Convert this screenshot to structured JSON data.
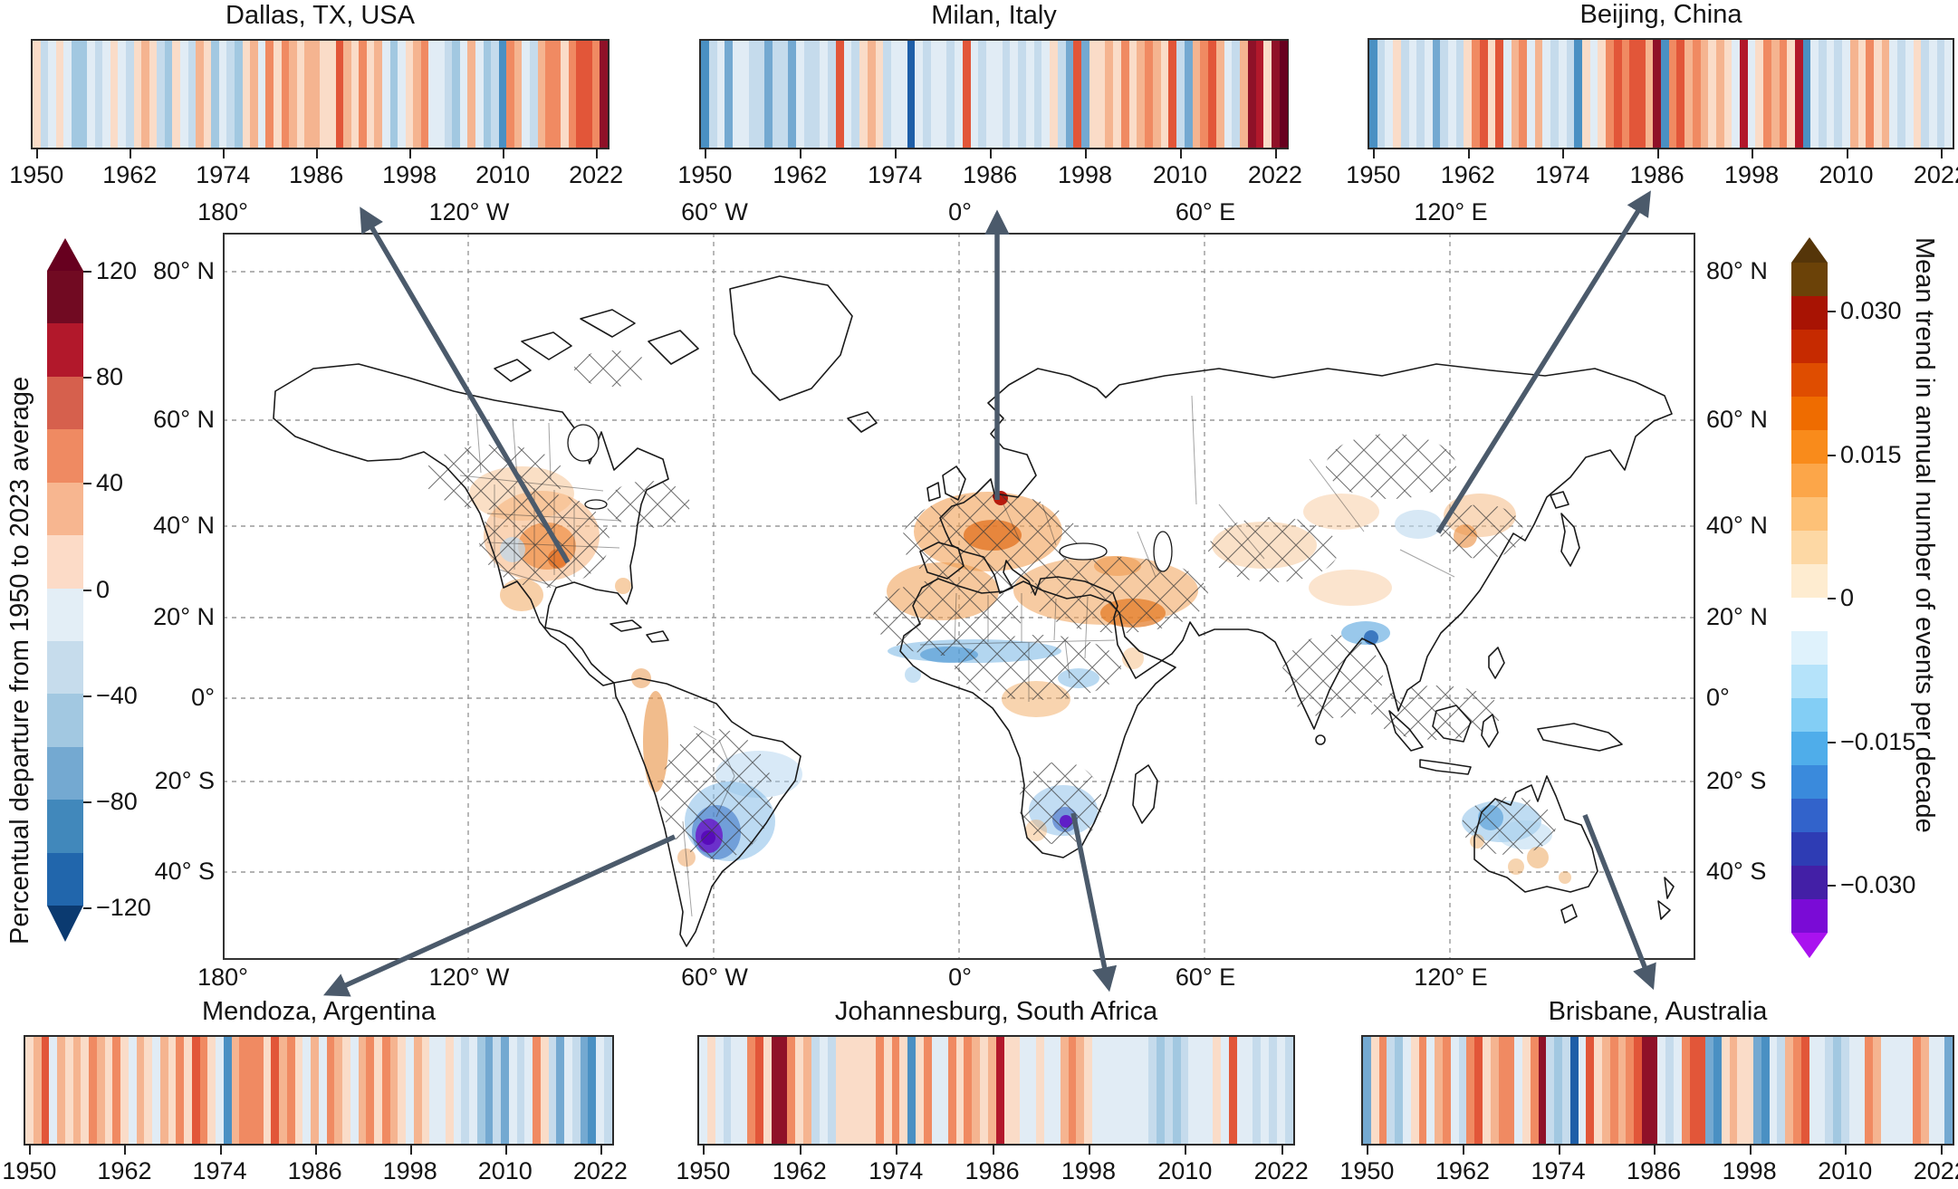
{
  "figure": {
    "background": "#ffffff",
    "arrow_color": "#4b5a6b",
    "frame_color": "#333333"
  },
  "palette": {
    "dkRed": "#67001f",
    "dkRed2": "#8f1128",
    "red2": "#b2182b",
    "red": "#e25639",
    "salmon": "#f08a62",
    "peach": "#f5b490",
    "palePink": "#fadcc8",
    "paleBlue": "#e1ecf5",
    "lightBlue": "#c5dbec",
    "midBlue": "#a2c8e1",
    "steel": "#74a9d1",
    "medBlue": "#4a90c3",
    "navy": "#1f5fa8"
  },
  "chart_data": {
    "type": "heatmap",
    "subtype": "warming-stripes panels (one stripe per year, color = percentual departure from 1950-2023 average)",
    "years": {
      "start": 1950,
      "end": 2023,
      "tick_years": [
        1950,
        1962,
        1974,
        1986,
        1998,
        2010,
        2022
      ],
      "tick_labels": [
        "1950",
        "1962",
        "1974",
        "1986",
        "1998",
        "2010",
        "2022"
      ]
    },
    "cities": [
      {
        "id": "dallas",
        "title": "Dallas, TX, USA",
        "stripes": [
          "palePink",
          "lightBlue",
          "paleBlue",
          "palePink",
          "paleBlue",
          "midBlue",
          "midBlue",
          "paleBlue",
          "lightBlue",
          "paleBlue",
          "palePink",
          "paleBlue",
          "lightBlue",
          "palePink",
          "peach",
          "palePink",
          "lightBlue",
          "midBlue",
          "palePink",
          "paleBlue",
          "lightBlue",
          "peach",
          "palePink",
          "midBlue",
          "paleBlue",
          "lightBlue",
          "midBlue",
          "palePink",
          "peach",
          "paleBlue",
          "salmon",
          "palePink",
          "salmon",
          "peach",
          "palePink",
          "peach",
          "peach",
          "palePink",
          "palePink",
          "red",
          "peach",
          "palePink",
          "salmon",
          "palePink",
          "peach",
          "paleBlue",
          "midBlue",
          "paleBlue",
          "palePink",
          "peach",
          "salmon",
          "paleBlue",
          "paleBlue",
          "lightBlue",
          "midBlue",
          "paleBlue",
          "peach",
          "paleBlue",
          "midBlue",
          "lightBlue",
          "medBlue",
          "salmon",
          "peach",
          "paleBlue",
          "lightBlue",
          "peach",
          "salmon",
          "salmon",
          "palePink",
          "salmon",
          "red",
          "red",
          "salmon",
          "dkRed2"
        ]
      },
      {
        "id": "milan",
        "title": "Milan, Italy",
        "stripes": [
          "medBlue",
          "lightBlue",
          "paleBlue",
          "steel",
          "paleBlue",
          "paleBlue",
          "lightBlue",
          "lightBlue",
          "steel",
          "lightBlue",
          "lightBlue",
          "steel",
          "paleBlue",
          "lightBlue",
          "lightBlue",
          "paleBlue",
          "lightBlue",
          "red",
          "paleBlue",
          "lightBlue",
          "palePink",
          "peach",
          "palePink",
          "lightBlue",
          "paleBlue",
          "paleBlue",
          "navy",
          "paleBlue",
          "lightBlue",
          "paleBlue",
          "paleBlue",
          "lightBlue",
          "paleBlue",
          "red",
          "paleBlue",
          "lightBlue",
          "paleBlue",
          "paleBlue",
          "lightBlue",
          "paleBlue",
          "lightBlue",
          "paleBlue",
          "lightBlue",
          "paleBlue",
          "palePink",
          "lightBlue",
          "steel",
          "red",
          "steel",
          "palePink",
          "palePink",
          "peach",
          "palePink",
          "salmon",
          "palePink",
          "peach",
          "salmon",
          "peach",
          "palePink",
          "red",
          "lightBlue",
          "steel",
          "peach",
          "salmon",
          "red",
          "peach",
          "paleBlue",
          "lightBlue",
          "peach",
          "dkRed2",
          "red2",
          "palePink",
          "dkRed2",
          "dkRed"
        ]
      },
      {
        "id": "beijing",
        "title": "Beijing, China",
        "stripes": [
          "medBlue",
          "lightBlue",
          "paleBlue",
          "palePink",
          "lightBlue",
          "paleBlue",
          "lightBlue",
          "paleBlue",
          "steel",
          "lightBlue",
          "paleBlue",
          "lightBlue",
          "palePink",
          "salmon",
          "red",
          "palePink",
          "red",
          "paleBlue",
          "peach",
          "salmon",
          "paleBlue",
          "peach",
          "paleBlue",
          "lightBlue",
          "paleBlue",
          "lightBlue",
          "medBlue",
          "palePink",
          "paleBlue",
          "palePink",
          "salmon",
          "red",
          "salmon",
          "red",
          "red",
          "peach",
          "dkRed2",
          "medBlue",
          "salmon",
          "red",
          "peach",
          "salmon",
          "peach",
          "palePink",
          "peach",
          "palePink",
          "paleBlue",
          "red2",
          "paleBlue",
          "palePink",
          "salmon",
          "peach",
          "salmon",
          "palePink",
          "red2",
          "medBlue",
          "paleBlue",
          "lightBlue",
          "paleBlue",
          "lightBlue",
          "paleBlue",
          "peach",
          "palePink",
          "salmon",
          "palePink",
          "peach",
          "paleBlue",
          "lightBlue",
          "paleBlue",
          "palePink",
          "lightBlue",
          "paleBlue",
          "lightBlue",
          "paleBlue"
        ]
      },
      {
        "id": "mendoza",
        "title": "Mendoza, Argentina",
        "stripes": [
          "palePink",
          "peach",
          "red",
          "paleBlue",
          "peach",
          "palePink",
          "peach",
          "palePink",
          "salmon",
          "peach",
          "palePink",
          "salmon",
          "palePink",
          "paleBlue",
          "peach",
          "palePink",
          "paleBlue",
          "peach",
          "palePink",
          "salmon",
          "palePink",
          "red",
          "salmon",
          "palePink",
          "paleBlue",
          "medBlue",
          "peach",
          "salmon",
          "salmon",
          "salmon",
          "palePink",
          "red",
          "peach",
          "salmon",
          "palePink",
          "paleBlue",
          "peach",
          "paleBlue",
          "salmon",
          "peach",
          "palePink",
          "paleBlue",
          "peach",
          "salmon",
          "palePink",
          "salmon",
          "peach",
          "palePink",
          "paleBlue",
          "peach",
          "palePink",
          "paleBlue",
          "paleBlue",
          "palePink",
          "paleBlue",
          "lightBlue",
          "paleBlue",
          "midBlue",
          "steel",
          "lightBlue",
          "steel",
          "paleBlue",
          "lightBlue",
          "paleBlue",
          "salmon",
          "palePink",
          "lightBlue",
          "steel",
          "paleBlue",
          "lightBlue",
          "steel",
          "medBlue",
          "paleBlue",
          "lightBlue"
        ]
      },
      {
        "id": "johannesburg",
        "title": "Johannesburg, South Africa",
        "stripes": [
          "paleBlue",
          "palePink",
          "paleBlue",
          "lightBlue",
          "paleBlue",
          "paleBlue",
          "salmon",
          "red",
          "palePink",
          "dkRed2",
          "dkRed2",
          "salmon",
          "palePink",
          "peach",
          "lightBlue",
          "paleBlue",
          "lightBlue",
          "palePink",
          "palePink",
          "palePink",
          "palePink",
          "palePink",
          "salmon",
          "palePink",
          "salmon",
          "palePink",
          "medBlue",
          "palePink",
          "salmon",
          "paleBlue",
          "paleBlue",
          "salmon",
          "palePink",
          "salmon",
          "peach",
          "palePink",
          "peach",
          "red2",
          "palePink",
          "palePink",
          "paleBlue",
          "paleBlue",
          "palePink",
          "paleBlue",
          "paleBlue",
          "peach",
          "salmon",
          "peach",
          "palePink",
          "paleBlue",
          "paleBlue",
          "paleBlue",
          "paleBlue",
          "paleBlue",
          "paleBlue",
          "paleBlue",
          "lightBlue",
          "midBlue",
          "lightBlue",
          "midBlue",
          "lightBlue",
          "paleBlue",
          "paleBlue",
          "paleBlue",
          "palePink",
          "paleBlue",
          "red",
          "paleBlue",
          "paleBlue",
          "lightBlue",
          "paleBlue",
          "lightBlue",
          "paleBlue",
          "lightBlue"
        ]
      },
      {
        "id": "brisbane",
        "title": "Brisbane, Australia",
        "stripes": [
          "steel",
          "palePink",
          "salmon",
          "lightBlue",
          "midBlue",
          "paleBlue",
          "palePink",
          "salmon",
          "paleBlue",
          "peach",
          "salmon",
          "paleBlue",
          "lightBlue",
          "salmon",
          "red",
          "palePink",
          "peach",
          "salmon",
          "salmon",
          "paleBlue",
          "palePink",
          "salmon",
          "dkRed2",
          "lightBlue",
          "midBlue",
          "lightBlue",
          "navy",
          "paleBlue",
          "red",
          "palePink",
          "peach",
          "salmon",
          "peach",
          "salmon",
          "red",
          "dkRed2",
          "dkRed2",
          "paleBlue",
          "lightBlue",
          "paleBlue",
          "salmon",
          "red",
          "red",
          "steel",
          "medBlue",
          "palePink",
          "peach",
          "palePink",
          "palePink",
          "steel",
          "medBlue",
          "paleBlue",
          "lightBlue",
          "peach",
          "salmon",
          "red",
          "paleBlue",
          "paleBlue",
          "lightBlue",
          "midBlue",
          "lightBlue",
          "paleBlue",
          "paleBlue",
          "salmon",
          "peach",
          "paleBlue",
          "paleBlue",
          "paleBlue",
          "paleBlue",
          "salmon",
          "peach",
          "paleBlue",
          "paleBlue",
          "steel"
        ]
      }
    ]
  },
  "map": {
    "lon_labels": [
      "180°",
      "120° W",
      "60° W",
      "0°",
      "60° E",
      "120° E"
    ],
    "lat_labels": [
      "80° N",
      "60° N",
      "40° N",
      "20° N",
      "0°",
      "20° S",
      "40° S"
    ]
  },
  "left_colorbar": {
    "label": "Percentual departure from 1950 to 2023 average",
    "tick_labels": [
      "120",
      "80",
      "40",
      "0",
      "−40",
      "−80",
      "−120"
    ],
    "tip_top": "#67001f",
    "tip_bottom": "#0b3a70",
    "segments": [
      "#710a22",
      "#b2182b",
      "#d6604d",
      "#ef8a62",
      "#f7b690",
      "#fcdbc7",
      "#e3eef6",
      "#c6dcec",
      "#a2c8e1",
      "#74a9d1",
      "#4188bb",
      "#2166ac"
    ]
  },
  "right_colorbar": {
    "label": "Mean trend in annual number of events per decade",
    "tick_labels": [
      "0.030",
      "0.015",
      "0",
      "−0.015",
      "−0.030"
    ],
    "tip_top": "#553509",
    "tip_bottom": "#a912ef",
    "segments": [
      "#6b4208",
      "#a81303",
      "#c62a00",
      "#df4d00",
      "#ef6c00",
      "#f98b1b",
      "#fca649",
      "#fdc177",
      "#fdd8a4",
      "#feecd0",
      "#ffffff",
      "#dff2fc",
      "#b5e3fa",
      "#83cef5",
      "#4fadea",
      "#3a8adc",
      "#3263cb",
      "#2e3cb4",
      "#431fa6",
      "#7a0bd6"
    ]
  }
}
